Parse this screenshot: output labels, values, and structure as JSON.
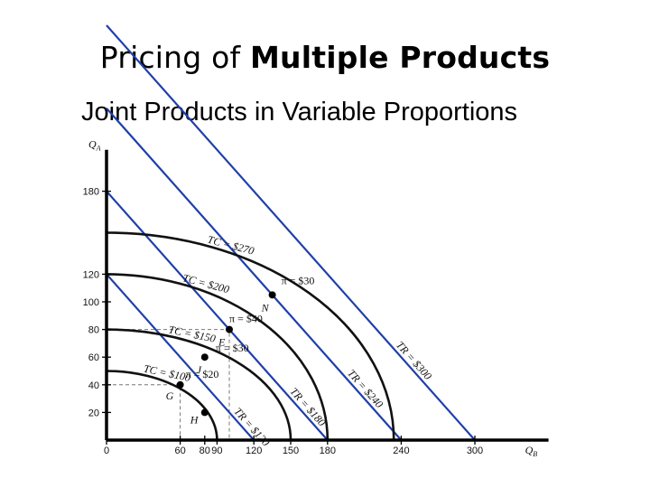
{
  "slide": {
    "title_plain": "Pricing of ",
    "title_bold": "Multiple Products",
    "subtitle": "Joint Products in Variable Proportions"
  },
  "colors": {
    "isorevenue": "#1f3fa8",
    "isocost": "#111111",
    "guides": "#777777"
  },
  "chart_data": {
    "type": "line",
    "title": "",
    "xlabel": "Q_B",
    "ylabel": "Q_A",
    "xlim": [
      0,
      360
    ],
    "ylim": [
      0,
      210
    ],
    "x_ticks": [
      0,
      60,
      80,
      90,
      120,
      150,
      180,
      240,
      300
    ],
    "y_ticks": [
      20,
      40,
      60,
      80,
      100,
      120,
      180
    ],
    "isocost_curves": [
      {
        "label": "TC = $100",
        "q_b_intercept": 90,
        "q_a_intercept": 50
      },
      {
        "label": "TC = $150",
        "q_b_intercept": 150,
        "q_a_intercept": 80
      },
      {
        "label": "TC = $200",
        "q_b_intercept": 180,
        "q_a_intercept": 120
      },
      {
        "label": "TC = $270",
        "q_b_intercept": 234,
        "q_a_intercept": 150
      }
    ],
    "isorevenue_lines": [
      {
        "label": "TR = $120",
        "q_b_intercept": 120,
        "q_a_intercept": 120
      },
      {
        "label": "TR = $180",
        "q_b_intercept": 180,
        "q_a_intercept": 180
      },
      {
        "label": "TR = $240",
        "q_b_intercept": 240,
        "q_a_intercept": 240
      },
      {
        "label": "TR = $300",
        "q_b_intercept": 300,
        "q_a_intercept": 300
      }
    ],
    "tangency_points": [
      {
        "point": "H",
        "q_b": 80,
        "q_a": 20,
        "profit": ""
      },
      {
        "point": "G",
        "q_b": 60,
        "q_a": 40,
        "profit": "π = $20"
      },
      {
        "point": "J",
        "q_b": 80,
        "q_a": 60,
        "profit": "π = $30"
      },
      {
        "point": "E",
        "q_b": 100,
        "q_a": 80,
        "profit": "π = $40"
      },
      {
        "point": "N",
        "q_b": 135,
        "q_a": 105,
        "profit": "π = $30"
      }
    ],
    "guide_lines": [
      {
        "q_b": 60,
        "q_a": 40
      },
      {
        "q_b": 100,
        "q_a": 80
      }
    ]
  }
}
